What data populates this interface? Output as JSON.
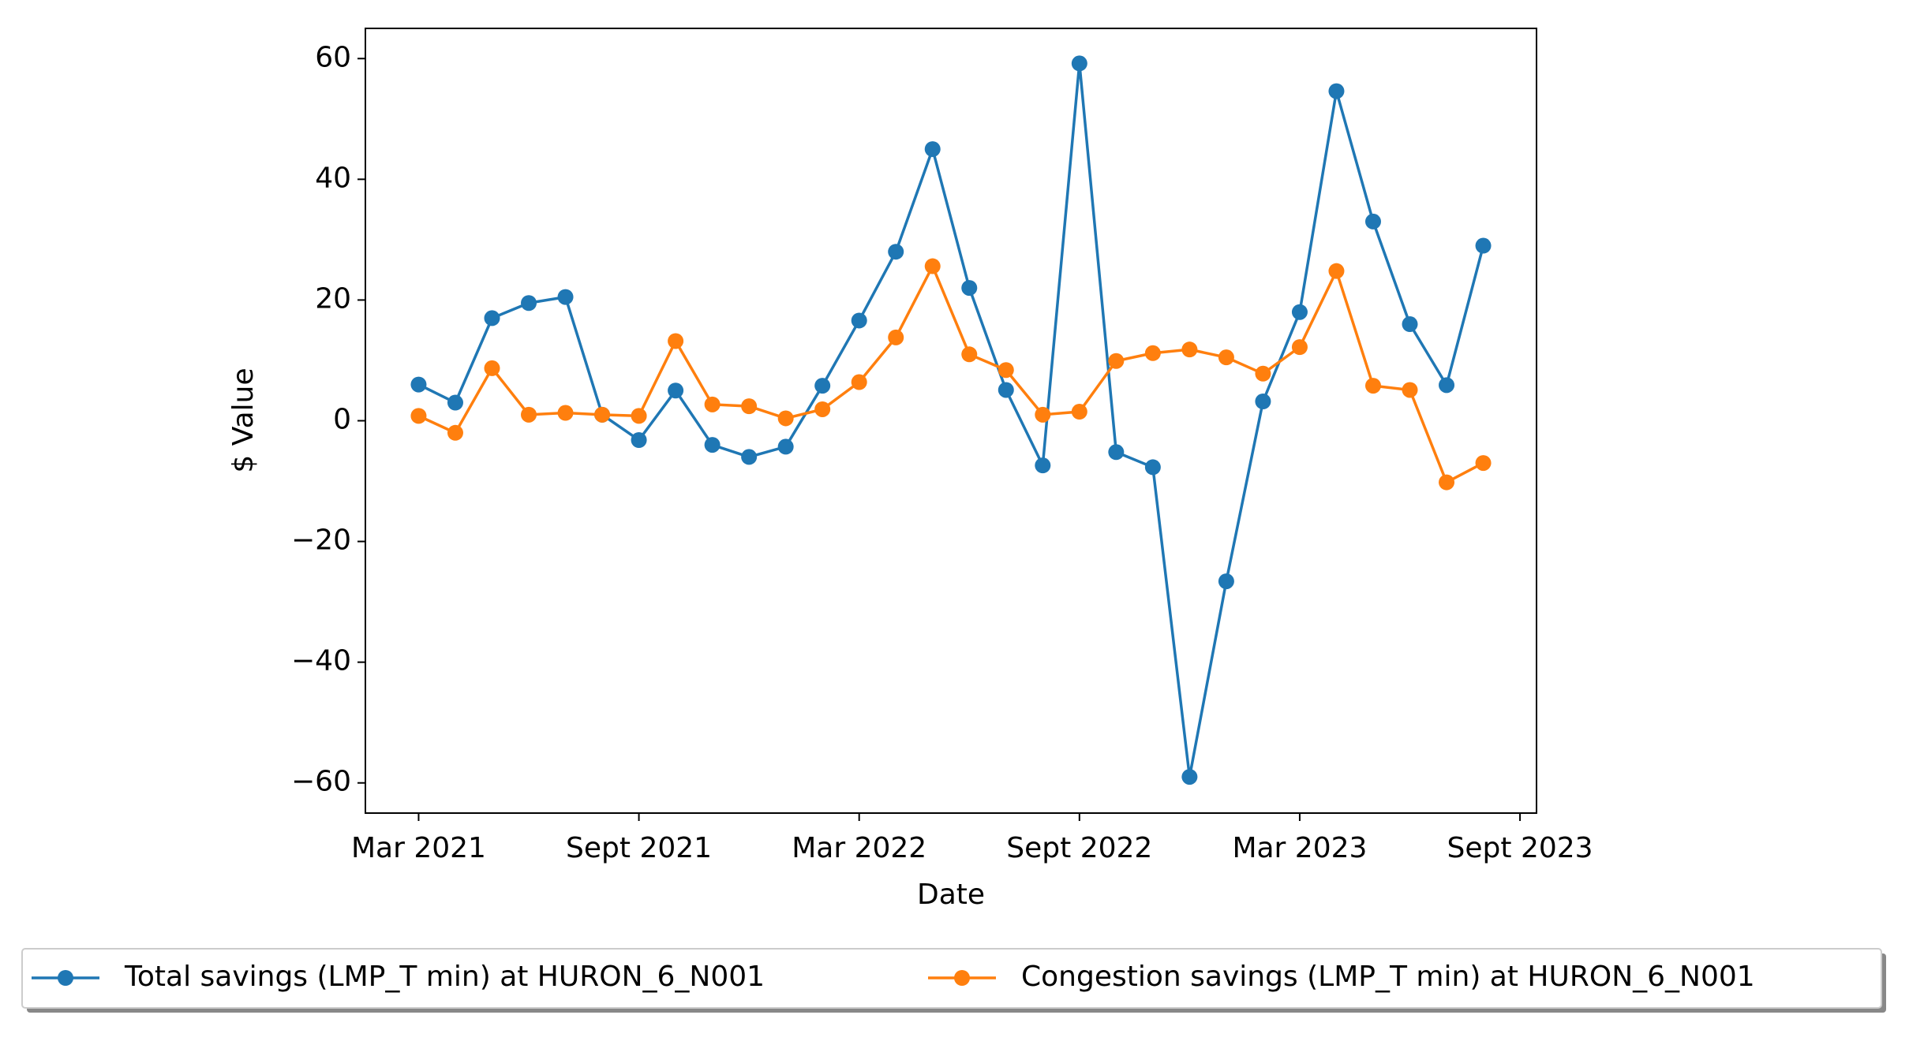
{
  "chart_data": {
    "type": "line",
    "x_label": "Date",
    "y_label": "$ Value",
    "x": [
      "2021-03",
      "2021-04",
      "2021-05",
      "2021-06",
      "2021-07",
      "2021-08",
      "2021-09",
      "2021-10",
      "2021-11",
      "2021-12",
      "2022-01",
      "2022-02",
      "2022-03",
      "2022-04",
      "2022-05",
      "2022-06",
      "2022-07",
      "2022-08",
      "2022-09",
      "2022-10",
      "2022-11",
      "2022-12",
      "2023-01",
      "2023-02",
      "2023-03",
      "2023-04",
      "2023-05",
      "2023-06",
      "2023-07",
      "2023-08"
    ],
    "series": [
      {
        "name": "Total savings (LMP_T min) at HURON_6_N001",
        "color": "#1f77b4",
        "values": [
          6,
          3,
          17,
          19.5,
          20.5,
          1,
          -3.2,
          5,
          -4,
          -6,
          -4.3,
          5.8,
          16.6,
          28,
          45,
          22,
          5.1,
          -7.4,
          59.2,
          -5.2,
          -7.7,
          -59,
          -26.6,
          3.2,
          18,
          54.6,
          33,
          16,
          5.9,
          29
        ]
      },
      {
        "name": "Congestion savings (LMP_T min) at HURON_6_N001",
        "color": "#ff7f0e",
        "values": [
          0.8,
          -2,
          8.7,
          1,
          1.3,
          1,
          0.8,
          13.2,
          2.7,
          2.4,
          0.4,
          1.9,
          6.4,
          13.8,
          25.6,
          11,
          8.4,
          1,
          1.5,
          9.9,
          11.2,
          11.8,
          10.5,
          7.8,
          12.2,
          24.8,
          5.8,
          5.1,
          -10.2,
          -7
        ]
      }
    ],
    "xticks": [
      {
        "value": "2021-03",
        "label": "Mar 2021"
      },
      {
        "value": "2021-09",
        "label": "Sept 2021"
      },
      {
        "value": "2022-03",
        "label": "Mar 2022"
      },
      {
        "value": "2022-09",
        "label": "Sept 2022"
      },
      {
        "value": "2023-03",
        "label": "Mar 2023"
      },
      {
        "value": "2023-09",
        "label": "Sept 2023"
      }
    ],
    "ylim": [
      -65,
      65
    ],
    "yticks": [
      {
        "value": -60,
        "label": "−60"
      },
      {
        "value": -40,
        "label": "−40"
      },
      {
        "value": -20,
        "label": "−20"
      },
      0,
      20,
      40,
      60
    ],
    "legend": "lower center"
  }
}
